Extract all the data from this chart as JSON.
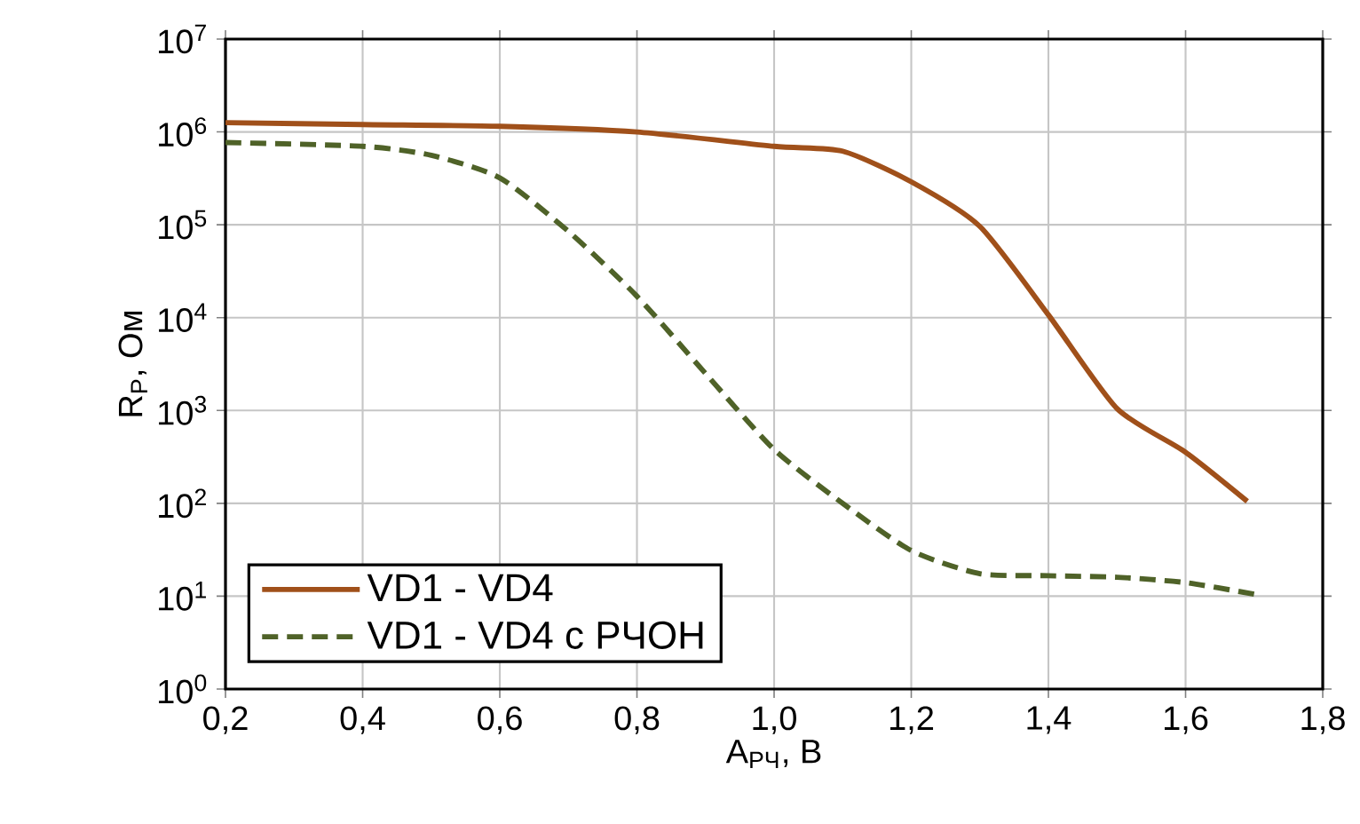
{
  "chart_data": {
    "type": "line",
    "xlabel": "A$_{РЧ}$, В",
    "ylabel": "R$_{Р}$, Ом",
    "xlim": [
      0.2,
      1.8
    ],
    "xticks": [
      {
        "value": 0.2,
        "label": "0,2"
      },
      {
        "value": 0.4,
        "label": "0,4"
      },
      {
        "value": 0.6,
        "label": "0,6"
      },
      {
        "value": 0.8,
        "label": "0,8"
      },
      {
        "value": 1.0,
        "label": "1,0"
      },
      {
        "value": 1.2,
        "label": "1,2"
      },
      {
        "value": 1.4,
        "label": "1,4"
      },
      {
        "value": 1.6,
        "label": "1,6"
      },
      {
        "value": 1.8,
        "label": "1,8"
      }
    ],
    "ylim": [
      1,
      10000000
    ],
    "log": "y",
    "yticks": [
      {
        "value": 1,
        "label": "10$^{0}$"
      },
      {
        "value": 10,
        "label": "10$^{1}$"
      },
      {
        "value": 100,
        "label": "10$^{2}$"
      },
      {
        "value": 1000,
        "label": "10$^{3}$"
      },
      {
        "value": 10000,
        "label": "10$^{4}$"
      },
      {
        "value": 100000,
        "label": "10$^{5}$"
      },
      {
        "value": 1000000,
        "label": "10$^{6}$"
      },
      {
        "value": 10000000,
        "label": "10$^{7}$"
      }
    ],
    "grid": true,
    "legend": "bottom left",
    "marker": "none",
    "series": [
      {
        "name": "VD1 - VD4",
        "color": "#a0501a",
        "line_style": "solid",
        "x": [
          0.2,
          0.4,
          0.6,
          0.8,
          1.0,
          1.1,
          1.2,
          1.3,
          1.4,
          1.5,
          1.6,
          1.69
        ],
        "values": [
          1260000,
          1200000,
          1150000,
          1000000,
          700000,
          620000,
          290000,
          96000,
          10700,
          1050,
          355,
          105
        ]
      },
      {
        "name": "VD1 - VD4 с РЧОН",
        "color": "#4f6228",
        "line_style": "dashed",
        "x": [
          0.2,
          0.4,
          0.5,
          0.6,
          0.7,
          0.8,
          0.9,
          1.0,
          1.1,
          1.2,
          1.3,
          1.4,
          1.5,
          1.6,
          1.7
        ],
        "values": [
          770000,
          700000,
          560000,
          320000,
          85000,
          17000,
          2500,
          380,
          100,
          31,
          17.5,
          16.6,
          16,
          14,
          10.5
        ]
      }
    ]
  }
}
